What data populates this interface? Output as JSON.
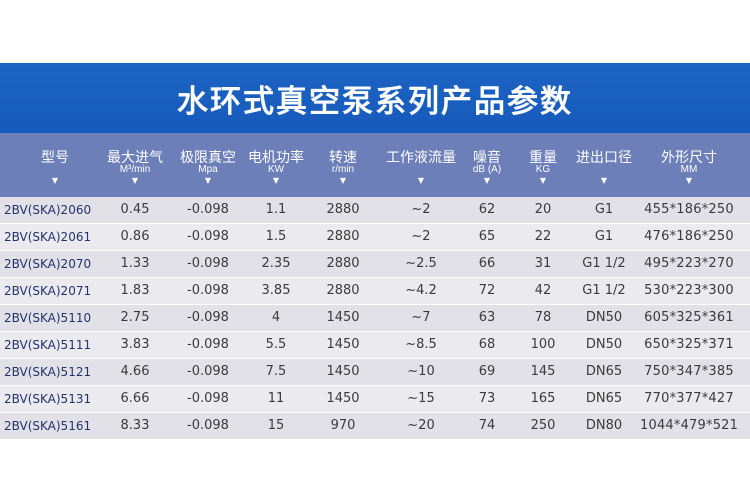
{
  "title": "水环式真空泵系列产品参数",
  "headers": [
    {
      "label": "型号",
      "unit": "",
      "arrow": "▼"
    },
    {
      "label": "最大进气",
      "unit": "M³/min",
      "arrow": "▼"
    },
    {
      "label": "极限真空",
      "unit": "Mpa",
      "arrow": "▼"
    },
    {
      "label": "电机功率",
      "unit": "KW",
      "arrow": "▼"
    },
    {
      "label": "转速",
      "unit": "r/min",
      "arrow": "▼"
    },
    {
      "label": "工作液流量",
      "unit": "",
      "arrow": "▼"
    },
    {
      "label": "噪音",
      "unit": "dB (A)",
      "arrow": "▼"
    },
    {
      "label": "重量",
      "unit": "KG",
      "arrow": "▼"
    },
    {
      "label": "进出口径",
      "unit": "",
      "arrow": "▼"
    },
    {
      "label": "外形尺寸",
      "unit": "MM",
      "arrow": "▼"
    }
  ],
  "rows": [
    [
      "2BV(SKA)2060",
      "0.45",
      "-0.098",
      "1.1",
      "2880",
      "~2",
      "62",
      "20",
      "G1",
      "455*186*250"
    ],
    [
      "2BV(SKA)2061",
      "0.86",
      "-0.098",
      "1.5",
      "2880",
      "~2",
      "65",
      "22",
      "G1",
      "476*186*250"
    ],
    [
      "2BV(SKA)2070",
      "1.33",
      "-0.098",
      "2.35",
      "2880",
      "~2.5",
      "66",
      "31",
      "G1 1/2",
      "495*223*270"
    ],
    [
      "2BV(SKA)2071",
      "1.83",
      "-0.098",
      "3.85",
      "2880",
      "~4.2",
      "72",
      "42",
      "G1 1/2",
      "530*223*300"
    ],
    [
      "2BV(SKA)5110",
      "2.75",
      "-0.098",
      "4",
      "1450",
      "~7",
      "63",
      "78",
      "DN50",
      "605*325*361"
    ],
    [
      "2BV(SKA)5111",
      "3.83",
      "-0.098",
      "5.5",
      "1450",
      "~8.5",
      "68",
      "100",
      "DN50",
      "650*325*371"
    ],
    [
      "2BV(SKA)5121",
      "4.66",
      "-0.098",
      "7.5",
      "1450",
      "~10",
      "69",
      "145",
      "DN65",
      "750*347*385"
    ],
    [
      "2BV(SKA)5131",
      "6.66",
      "-0.098",
      "11",
      "1450",
      "~15",
      "73",
      "165",
      "DN65",
      "770*377*427"
    ],
    [
      "2BV(SKA)5161",
      "8.33",
      "-0.098",
      "15",
      "970",
      "~20",
      "74",
      "250",
      "DN80",
      "1044*479*521"
    ]
  ]
}
